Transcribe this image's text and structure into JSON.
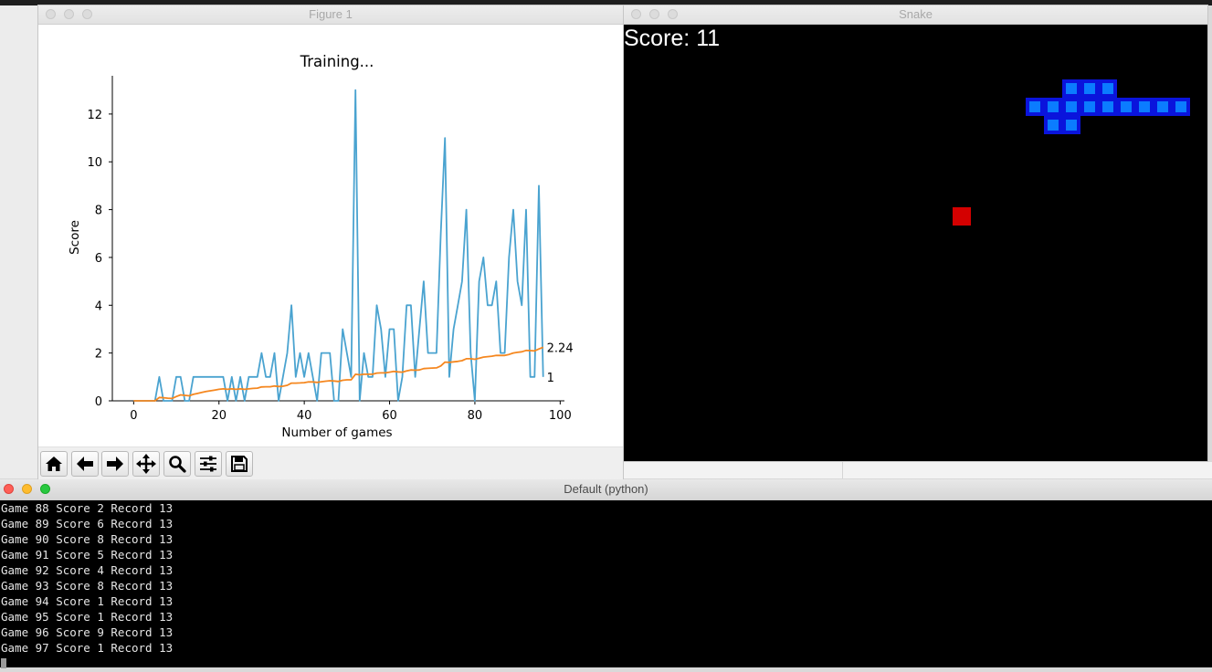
{
  "figure_window": {
    "title": "Figure 1",
    "toolbar": [
      {
        "name": "home-button",
        "icon": "home-icon"
      },
      {
        "name": "back-button",
        "icon": "arrow-left-icon"
      },
      {
        "name": "forward-button",
        "icon": "arrow-right-icon"
      },
      {
        "name": "pan-button",
        "icon": "move-icon"
      },
      {
        "name": "zoom-button",
        "icon": "magnifier-icon"
      },
      {
        "name": "configure-subplots-button",
        "icon": "sliders-icon"
      },
      {
        "name": "save-button",
        "icon": "floppy-disk-icon"
      }
    ]
  },
  "chart_data": {
    "type": "line",
    "title": "Training...",
    "xlabel": "Number of games",
    "ylabel": "Score",
    "xlim": [
      -5,
      101
    ],
    "ylim": [
      0,
      13.6
    ],
    "xticks": [
      0,
      20,
      40,
      60,
      80,
      100
    ],
    "yticks": [
      0,
      2,
      4,
      6,
      8,
      10,
      12
    ],
    "grid": false,
    "series": [
      {
        "color": "#4aa3d0",
        "values": [
          0,
          0,
          0,
          0,
          0,
          0,
          1,
          0,
          0,
          0,
          1,
          1,
          0,
          0,
          1,
          1,
          1,
          1,
          1,
          1,
          1,
          1,
          0,
          1,
          0,
          1,
          0,
          1,
          1,
          1,
          2,
          1,
          1,
          2,
          0,
          1,
          2,
          4,
          1,
          2,
          1,
          2,
          1,
          0,
          2,
          2,
          2,
          0,
          0,
          3,
          2,
          1,
          13,
          0,
          2,
          1,
          1,
          4,
          3,
          1,
          3,
          3,
          0,
          1,
          4,
          4,
          1,
          3,
          5,
          2,
          2,
          2,
          7,
          11,
          1,
          3,
          4,
          5,
          8,
          2,
          0,
          5,
          6,
          4,
          4,
          5,
          2,
          2,
          6,
          8,
          5,
          4,
          8,
          1,
          1,
          9,
          1
        ],
        "end_label": "1"
      },
      {
        "color": "#f5871f",
        "values": [
          0,
          0,
          0,
          0,
          0,
          0,
          0.14,
          0.13,
          0.11,
          0.1,
          0.18,
          0.25,
          0.23,
          0.21,
          0.27,
          0.31,
          0.35,
          0.39,
          0.42,
          0.45,
          0.48,
          0.5,
          0.48,
          0.5,
          0.48,
          0.5,
          0.48,
          0.5,
          0.52,
          0.53,
          0.58,
          0.59,
          0.59,
          0.62,
          0.6,
          0.61,
          0.65,
          0.74,
          0.74,
          0.75,
          0.76,
          0.79,
          0.79,
          0.77,
          0.8,
          0.82,
          0.84,
          0.83,
          0.81,
          0.86,
          0.88,
          0.88,
          1.11,
          1.09,
          1.11,
          1.11,
          1.11,
          1.16,
          1.17,
          1.17,
          1.2,
          1.23,
          1.21,
          1.2,
          1.25,
          1.29,
          1.28,
          1.29,
          1.35,
          1.36,
          1.37,
          1.38,
          1.46,
          1.62,
          1.61,
          1.63,
          1.65,
          1.68,
          1.76,
          1.76,
          1.74,
          1.78,
          1.83,
          1.85,
          1.87,
          1.9,
          1.9,
          1.9,
          1.94,
          2.0,
          2.03,
          2.05,
          2.11,
          2.1,
          2.09,
          2.17,
          2.24
        ],
        "end_label": "2.24"
      }
    ]
  },
  "snake_window": {
    "title": "Snake",
    "score_text": "Score: 11",
    "grid_cell": 20,
    "snake": [
      [
        22,
        4
      ],
      [
        23,
        4
      ],
      [
        24,
        4
      ],
      [
        25,
        4
      ],
      [
        26,
        4
      ],
      [
        27,
        4
      ],
      [
        28,
        4
      ],
      [
        29,
        4
      ],
      [
        30,
        4
      ],
      [
        24,
        5
      ],
      [
        23,
        5
      ],
      [
        24,
        3
      ],
      [
        25,
        3
      ],
      [
        26,
        3
      ]
    ],
    "food": [
      18,
      10
    ],
    "colors": {
      "snake_outer": "#0a14dc",
      "snake_inner": "#0b7cff",
      "food": "#d40000",
      "background": "#000000"
    }
  },
  "terminal_window": {
    "title": "Default (python)",
    "lines": [
      "Game 88 Score 2 Record 13",
      "Game 89 Score 6 Record 13",
      "Game 90 Score 8 Record 13",
      "Game 91 Score 5 Record 13",
      "Game 92 Score 4 Record 13",
      "Game 93 Score 8 Record 13",
      "Game 94 Score 1 Record 13",
      "Game 95 Score 1 Record 13",
      "Game 96 Score 9 Record 13",
      "Game 97 Score 1 Record 13"
    ]
  }
}
